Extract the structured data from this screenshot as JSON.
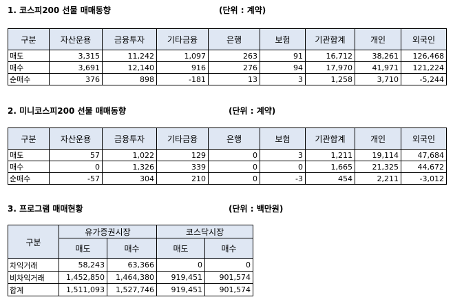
{
  "section1": {
    "title": "1. 코스피200 선물 매매동향",
    "unit": "(단위 : 계약)",
    "headers": [
      "구분",
      "자산운용",
      "금융투자",
      "기타금융",
      "은행",
      "보험",
      "기관합계",
      "개인",
      "외국인"
    ],
    "rows": [
      [
        "매도",
        "3,315",
        "11,242",
        "1,097",
        "263",
        "91",
        "16,712",
        "38,261",
        "126,468"
      ],
      [
        "매수",
        "3,691",
        "12,140",
        "916",
        "276",
        "94",
        "17,970",
        "41,971",
        "121,224"
      ],
      [
        "순매수",
        "376",
        "898",
        "-181",
        "13",
        "3",
        "1,258",
        "3,710",
        "-5,244"
      ]
    ]
  },
  "section2": {
    "title": "2. 미니코스피200 선물 매매동향",
    "unit": "(단위 : 계약)",
    "headers": [
      "구분",
      "자산운용",
      "금융투자",
      "기타금융",
      "은행",
      "보험",
      "기관합계",
      "개인",
      "외국인"
    ],
    "rows": [
      [
        "매도",
        "57",
        "1,022",
        "129",
        "0",
        "3",
        "1,211",
        "19,114",
        "47,684"
      ],
      [
        "매수",
        "0",
        "1,326",
        "339",
        "0",
        "0",
        "1,665",
        "21,325",
        "44,672"
      ],
      [
        "순매수",
        "-57",
        "304",
        "210",
        "0",
        "-3",
        "454",
        "2,211",
        "-3,012"
      ]
    ]
  },
  "section3": {
    "title": "3. 프로그램 매매현황",
    "unit": "(단위 : 백만원)",
    "header_label": "구분",
    "groups": [
      "유가증권시장",
      "코스닥시장"
    ],
    "subheaders": [
      "매도",
      "매수",
      "매도",
      "매수"
    ],
    "rows": [
      [
        "차익거래",
        "58,243",
        "63,366",
        "0",
        "0"
      ],
      [
        "비차익거래",
        "1,452,850",
        "1,464,380",
        "919,451",
        "901,574"
      ],
      [
        "합계",
        "1,511,093",
        "1,527,746",
        "919,451",
        "901,574"
      ]
    ]
  },
  "colors": {
    "header_bg": "#dfe7f3",
    "border": "#000000"
  }
}
